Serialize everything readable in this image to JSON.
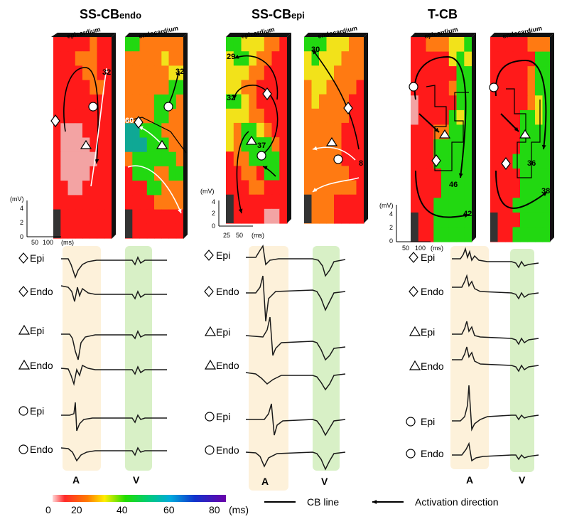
{
  "panels": [
    {
      "title_main": "SS-CB",
      "title_sub": "endo",
      "maps": [
        {
          "label": "epicardium",
          "numbers": [
            "32"
          ]
        },
        {
          "label": "endocardium",
          "numbers": [
            "32",
            "60"
          ]
        }
      ],
      "scale": {
        "ylabel": "(mV)",
        "yticks": [
          "4",
          "2",
          "0"
        ],
        "xticks": [
          "50",
          "100"
        ],
        "xunit": "(ms)"
      },
      "leads": [
        "Epi",
        "Endo",
        "Epi",
        "Endo",
        "Epi",
        "Endo"
      ],
      "band_labels": {
        "a": "A",
        "v": "V"
      }
    },
    {
      "title_main": "SS-CB",
      "title_sub": "epi",
      "maps": [
        {
          "label": "epicardium",
          "numbers": [
            "29",
            "32",
            "37"
          ]
        },
        {
          "label": "endocardium",
          "numbers": [
            "30",
            "8"
          ]
        }
      ],
      "scale": {
        "ylabel": "(mV)",
        "yticks": [
          "4",
          "2",
          "0"
        ],
        "xticks": [
          "25",
          "50"
        ],
        "xunit": "(ms)"
      },
      "leads": [
        "Epi",
        "Endo",
        "Epi",
        "Endo",
        "Epi",
        "Endo"
      ],
      "band_labels": {
        "a": "A",
        "v": "V"
      }
    },
    {
      "title_main": "T-CB",
      "title_sub": "",
      "maps": [
        {
          "label": "epicardium",
          "numbers": [
            "46",
            "42"
          ]
        },
        {
          "label": "endocardium",
          "numbers": [
            "36",
            "38"
          ]
        }
      ],
      "scale": {
        "ylabel": "(mV)",
        "yticks": [
          "4",
          "2",
          "0"
        ],
        "xticks": [
          "50",
          "100"
        ],
        "xunit": "(ms)"
      },
      "leads": [
        "Epi",
        "Endo",
        "Epi",
        "Endo",
        "Epi",
        "Endo"
      ],
      "band_labels": {
        "a": "A",
        "v": "V"
      }
    }
  ],
  "colorbar": {
    "ticks": [
      "0",
      "20",
      "40",
      "60",
      "80"
    ],
    "unit": "(ms)"
  },
  "legend": {
    "cb_line": "CB line",
    "activation": "Activation direction"
  },
  "colors": {
    "band_a": "#fdf1da",
    "band_v": "#d8f0c6",
    "trace": "#1a1a1a"
  }
}
